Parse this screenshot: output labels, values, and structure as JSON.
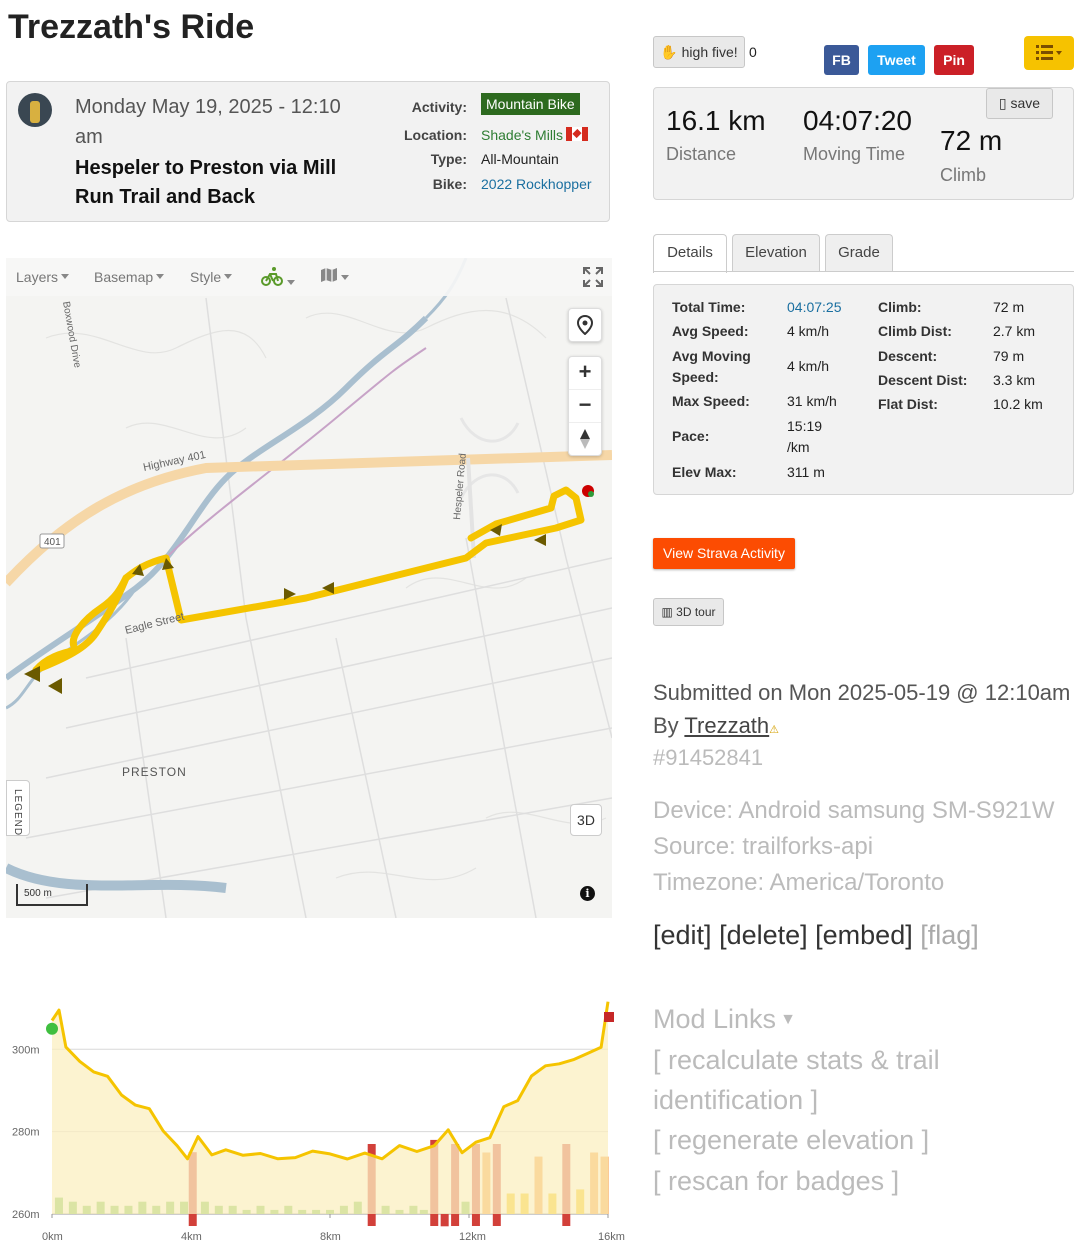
{
  "page": {
    "title": "Trezzath's Ride"
  },
  "ride": {
    "date": "Monday May 19, 2025 - 12:10 am",
    "name": "Hespeler to Preston via Mill Run Trail and Back",
    "labels": {
      "activity": "Activity:",
      "location": "Location:",
      "type": "Type:",
      "bike": "Bike:"
    },
    "activity": "Mountain Bike",
    "location": "Shade's Mills",
    "type": "All-Mountain",
    "bike": "2022 Rockhopper"
  },
  "actions": {
    "high_five": "high five!",
    "high_five_count": "0",
    "fb": "FB",
    "tweet": "Tweet",
    "pin": "Pin",
    "save": "save"
  },
  "stats": {
    "distance_value": "16.1 km",
    "distance_label": "Distance",
    "moving_time_value": "04:07:20",
    "moving_time_label": "Moving Time",
    "climb_value": "72 m",
    "climb_label": "Climb"
  },
  "tabs": [
    "Details",
    "Elevation",
    "Grade"
  ],
  "details": {
    "left": [
      {
        "label": "Total Time:",
        "value": "04:07:25"
      },
      {
        "label": "Avg Speed:",
        "value": "4 km/h"
      },
      {
        "label": "Avg Moving Speed:",
        "value": "4 km/h"
      },
      {
        "label": "Max Speed:",
        "value": "31 km/h"
      },
      {
        "label": "Pace:",
        "value": "15:19 /km"
      },
      {
        "label": "Elev Max:",
        "value": "311 m"
      }
    ],
    "right": [
      {
        "label": "Climb:",
        "value": "72 m"
      },
      {
        "label": "Climb Dist:",
        "value": "2.7 km"
      },
      {
        "label": "Descent:",
        "value": "79 m"
      },
      {
        "label": "Descent Dist:",
        "value": "3.3 km"
      },
      {
        "label": "Flat Dist:",
        "value": "10.2 km"
      }
    ]
  },
  "strava_button": "View Strava Activity",
  "tour_button": "3D tour",
  "submission": {
    "submitted": "Submitted on Mon 2025-05-19 @ 12:10am",
    "by_prefix": "By ",
    "user": "Trezzath",
    "id": "#91452841",
    "device": "Device: Android samsung SM-S921W",
    "source": "Source: trailforks-api",
    "timezone": "Timezone: America/Toronto"
  },
  "admin": {
    "edit": "[edit]",
    "delete": "[delete]",
    "embed": "[embed]",
    "flag": "[flag]"
  },
  "mod": {
    "title": "Mod Links",
    "links": [
      "[ recalculate stats & trail",
      "identification ]",
      "[ regenerate elevation ]",
      "[ rescan for badges ]"
    ]
  },
  "map": {
    "toolbar": {
      "layers": "Layers",
      "basemap": "Basemap",
      "style": "Style"
    },
    "labels": {
      "highway": "Highway 401",
      "shield": "401",
      "street": "Eagle Street",
      "hespeler_road": "Hespeler Road",
      "boxwood": "Boxwood Drive",
      "preston": "PRESTON"
    },
    "legend": "LEGEND",
    "btn_3d": "3D",
    "scale": "500 m",
    "colors": {
      "route": "#f5c400",
      "water": "#a9bfcf",
      "highway": "#f6d7a7"
    }
  },
  "chart_data": {
    "type": "area",
    "title": "",
    "xlabel": "",
    "ylabel": "",
    "xlim": [
      0,
      16
    ],
    "ylim": [
      260,
      311
    ],
    "x_ticks": [
      "0km",
      "4km",
      "8km",
      "12km",
      "16km"
    ],
    "y_ticks": [
      "260m",
      "280m",
      "300m"
    ],
    "elevation_series": {
      "name": "Elevation (m)",
      "x": [
        0,
        0.2,
        0.4,
        0.8,
        1.2,
        1.6,
        2,
        2.4,
        2.8,
        3.2,
        3.6,
        3.9,
        4.2,
        4.6,
        5,
        5.5,
        6,
        6.5,
        7,
        7.5,
        8,
        8.5,
        9,
        9.5,
        10,
        10.5,
        11,
        11.4,
        11.8,
        12.2,
        12.6,
        13,
        13.4,
        13.8,
        14.2,
        14.6,
        15,
        15.4,
        15.8,
        16
      ],
      "y": [
        307,
        309,
        300,
        297,
        295,
        294,
        289,
        286,
        285,
        280,
        277,
        274,
        279,
        274,
        275,
        274,
        275,
        274,
        274,
        275,
        274,
        273,
        275,
        274,
        277,
        275,
        276,
        280,
        275,
        278,
        279,
        286,
        287,
        293,
        296,
        297,
        298,
        299,
        300,
        311
      ]
    },
    "grade_bars": {
      "name": "Grade",
      "x": [
        0.2,
        0.6,
        1.0,
        1.4,
        1.8,
        2.2,
        2.6,
        3.0,
        3.4,
        3.8,
        4.05,
        4.4,
        4.8,
        5.2,
        5.6,
        6.0,
        6.4,
        6.8,
        7.2,
        7.6,
        8.0,
        8.4,
        8.8,
        9.2,
        9.6,
        10.0,
        10.4,
        10.7,
        11.0,
        11.3,
        11.6,
        11.9,
        12.2,
        12.5,
        12.8,
        13.2,
        13.6,
        14.0,
        14.4,
        14.8,
        15.2,
        15.6,
        15.9
      ],
      "values": [
        4,
        3,
        2,
        3,
        2,
        2,
        3,
        2,
        3,
        3,
        -18,
        3,
        2,
        2,
        1,
        2,
        1,
        2,
        1,
        1,
        1,
        2,
        3,
        -20,
        2,
        1,
        2,
        1,
        -21,
        -3,
        -20,
        3,
        -20,
        15,
        -20,
        5,
        5,
        14,
        5,
        -20,
        6,
        15,
        14
      ],
      "colors": {
        "climb_easy": "#7cc24f",
        "climb_mid": "#f5c400",
        "climb_hard": "#f79a38",
        "descent": "#d2403a"
      }
    },
    "start_marker": "start",
    "end_marker": "finish"
  }
}
